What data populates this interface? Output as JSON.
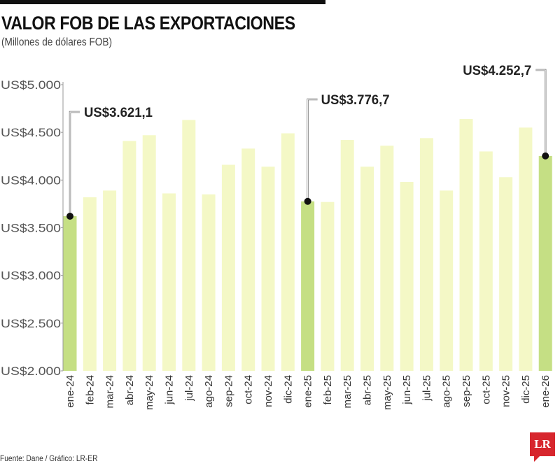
{
  "chart_data": {
    "type": "bar",
    "title": "VALOR FOB DE LAS EXPORTACIONES",
    "subtitle": "(Millones de dólares FOB)",
    "xlabel": "",
    "ylabel": "",
    "ylim": [
      2000,
      5000
    ],
    "yticks": [
      5000,
      4500,
      4000,
      3500,
      3000,
      2500,
      2000
    ],
    "ytick_labels": [
      "US$5.000",
      "US$4.500",
      "US$4.000",
      "US$3.500",
      "US$3.000",
      "US$2.500",
      "US$2.000"
    ],
    "grid": false,
    "categories": [
      "ene-24",
      "feb-24",
      "mar-24",
      "abr-24",
      "may-24",
      "jun-24",
      "jul-24",
      "ago-24",
      "sep-24",
      "oct-24",
      "nov-24",
      "dic-24",
      "ene-25",
      "feb-25",
      "mar-25",
      "abr-25",
      "may-25",
      "jun-25",
      "jul-25",
      "ago-25",
      "sep-25",
      "oct-25",
      "nov-25",
      "dic-25",
      "ene-26"
    ],
    "values": [
      3621.1,
      3820,
      3890,
      4410,
      4470,
      3860,
      4630,
      3850,
      4160,
      4330,
      4140,
      4490,
      3776.7,
      3770,
      4420,
      4140,
      4360,
      3980,
      4440,
      3890,
      4640,
      4300,
      4030,
      4550,
      4252.7
    ],
    "highlighted": [
      "ene-24",
      "ene-25",
      "ene-26"
    ],
    "annotations": [
      {
        "category": "ene-24",
        "label": "US$3.621,1"
      },
      {
        "category": "ene-25",
        "label": "US$3.776,7"
      },
      {
        "category": "ene-26",
        "label": "US$4.252,7"
      }
    ],
    "colors": {
      "bar": "#f4f8c6",
      "highlight": "#c5df84",
      "marker": "#111111"
    }
  },
  "footer": "Fuente: Dane / Gráfico: LR-ER",
  "logo": "LR"
}
